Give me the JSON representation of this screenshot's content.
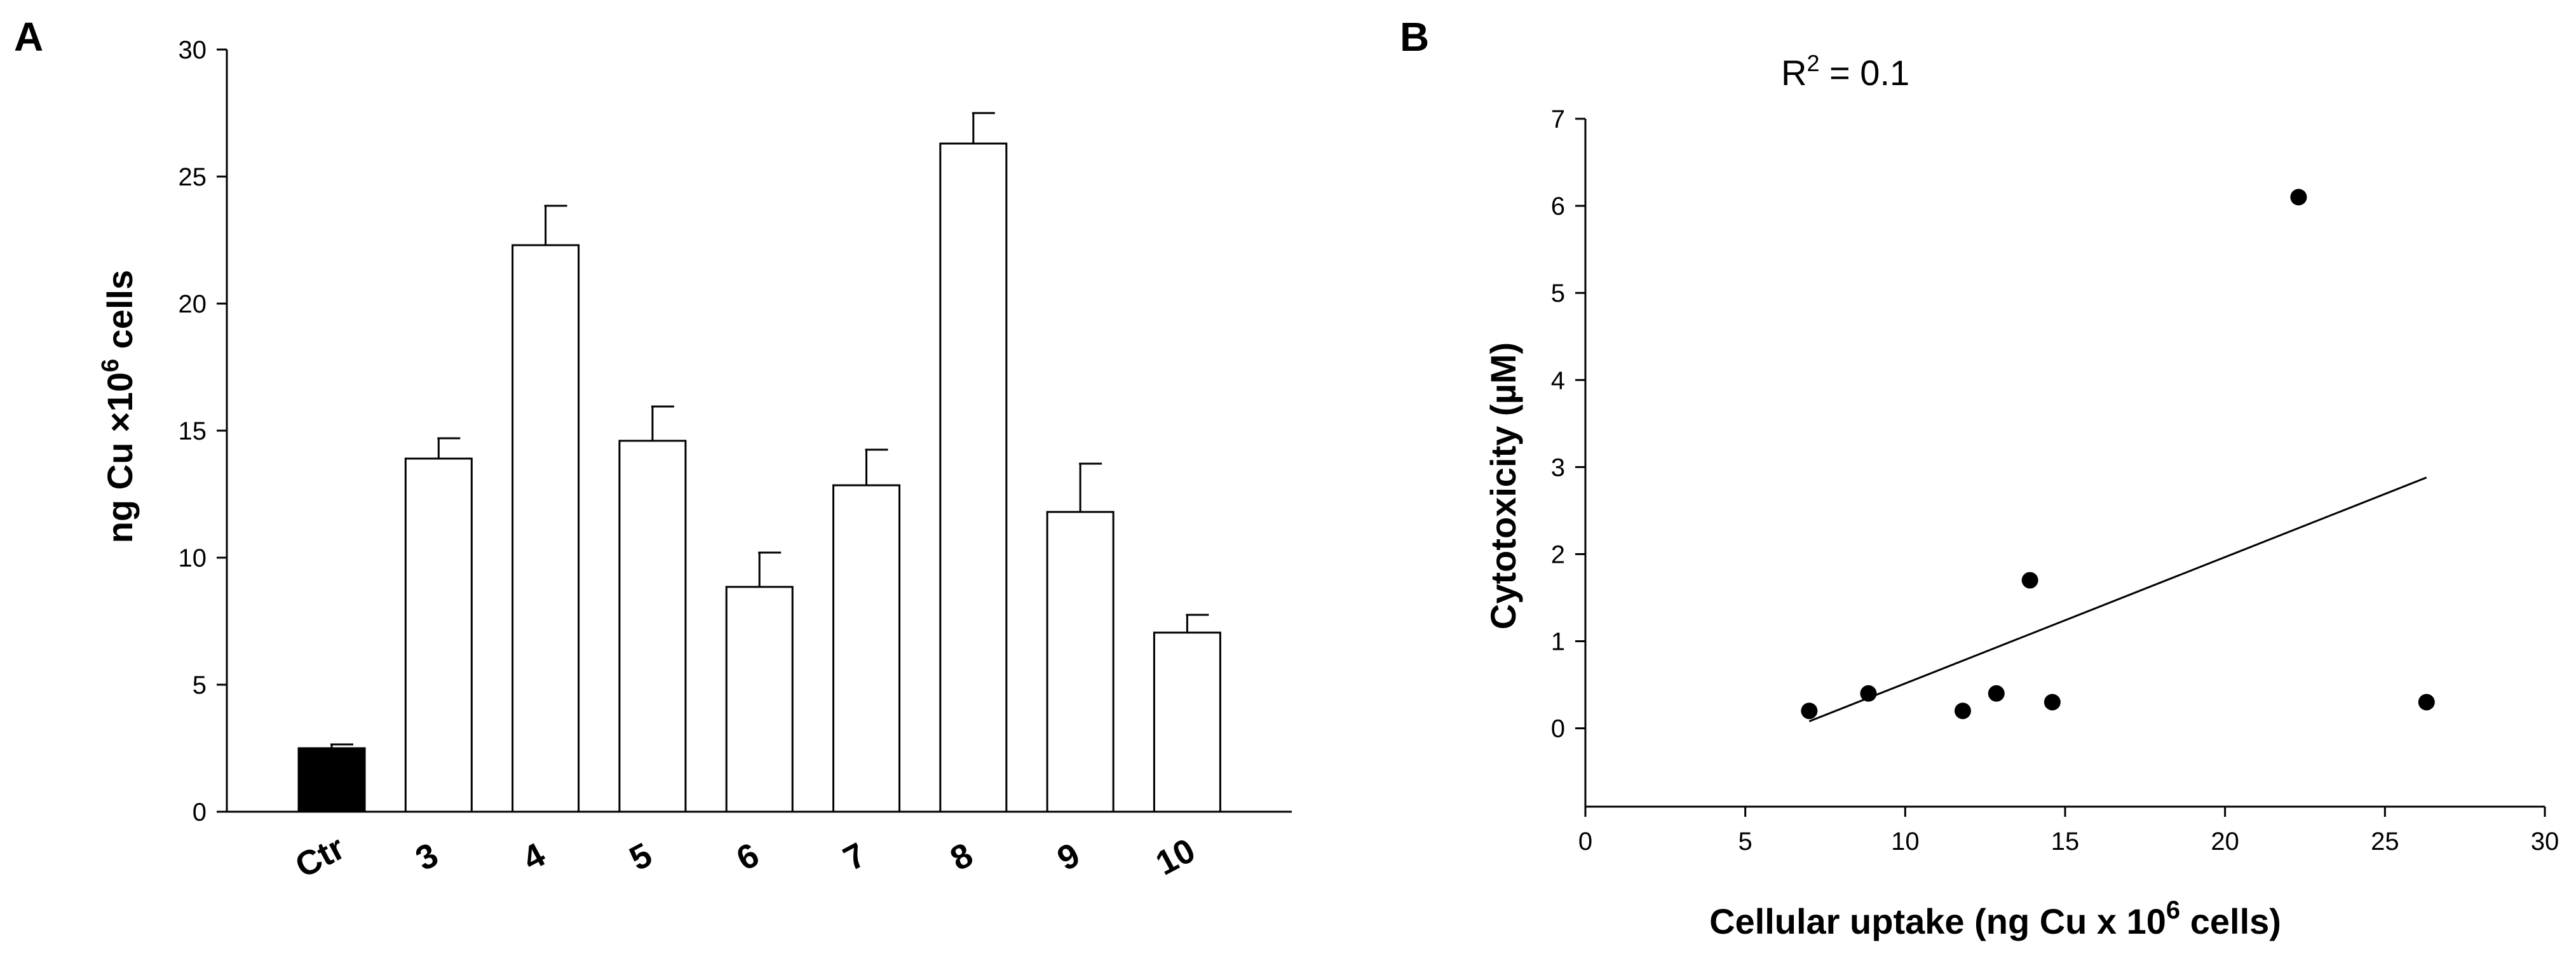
{
  "chart_data": [
    {
      "type": "bar",
      "panel_label": "A",
      "categories": [
        "Ctr",
        "3",
        "4",
        "5",
        "6",
        "7",
        "8",
        "9",
        "10"
      ],
      "values": [
        2.5,
        13.9,
        22.3,
        14.6,
        8.85,
        12.85,
        26.3,
        11.8,
        7.05
      ],
      "errors": [
        0.15,
        0.8,
        1.55,
        1.35,
        1.35,
        1.4,
        1.2,
        1.9,
        0.7
      ],
      "bar_colors": [
        "#000000",
        "#ffffff",
        "#ffffff",
        "#ffffff",
        "#ffffff",
        "#ffffff",
        "#ffffff",
        "#ffffff",
        "#ffffff"
      ],
      "ylabel": "ng Cu ×10",
      "ylabel_sup": "6",
      "ylabel_suffix": " cells",
      "ylim": [
        0,
        30
      ],
      "yticks": [
        "0",
        "5",
        "10",
        "15",
        "20",
        "25",
        "30"
      ],
      "grid": false
    },
    {
      "type": "scatter",
      "panel_label": "B",
      "annotation_main": "R",
      "annotation_sup": "2",
      "annotation_suffix": " = 0.1",
      "points": [
        {
          "x": 7.0,
          "y": 0.2
        },
        {
          "x": 8.85,
          "y": 0.4
        },
        {
          "x": 11.8,
          "y": 0.2
        },
        {
          "x": 12.85,
          "y": 0.4
        },
        {
          "x": 13.9,
          "y": 1.7
        },
        {
          "x": 14.6,
          "y": 0.3
        },
        {
          "x": 22.3,
          "y": 6.1
        },
        {
          "x": 26.3,
          "y": 0.3
        }
      ],
      "fit_line": {
        "x": [
          7.0,
          26.3
        ],
        "y": [
          0.08,
          2.88
        ]
      },
      "xlabel": "Cellular uptake (ng Cu x 10",
      "xlabel_sup": "6",
      "xlabel_suffix": " cells)",
      "ylabel": "Cytotoxicity (µM)",
      "xlim": [
        0,
        30
      ],
      "ylim": [
        -0.9,
        7
      ],
      "xticks": [
        "0",
        "5",
        "10",
        "15",
        "20",
        "25",
        "30"
      ],
      "yticks": [
        "0",
        "1",
        "2",
        "3",
        "4",
        "5",
        "6",
        "7"
      ],
      "grid": false
    }
  ]
}
